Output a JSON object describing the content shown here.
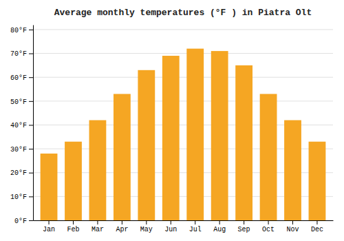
{
  "chart_data": {
    "type": "bar",
    "title": "Average monthly temperatures (°F ) in Piatra Olt",
    "categories": [
      "Jan",
      "Feb",
      "Mar",
      "Apr",
      "May",
      "Jun",
      "Jul",
      "Aug",
      "Sep",
      "Oct",
      "Nov",
      "Dec"
    ],
    "values": [
      28,
      33,
      42,
      53,
      63,
      69,
      72,
      71,
      65,
      53,
      42,
      33
    ],
    "color": "#F5A623",
    "ylim": [
      0,
      82
    ],
    "yticks": [
      {
        "value": 0,
        "label": "0°F"
      },
      {
        "value": 10,
        "label": "10°F"
      },
      {
        "value": 20,
        "label": "20°F"
      },
      {
        "value": 30,
        "label": "30°F"
      },
      {
        "value": 40,
        "label": "40°F"
      },
      {
        "value": 50,
        "label": "50°F"
      },
      {
        "value": 60,
        "label": "60°F"
      },
      {
        "value": 70,
        "label": "70°F"
      },
      {
        "value": 80,
        "label": "80°F"
      }
    ],
    "grid": true
  }
}
